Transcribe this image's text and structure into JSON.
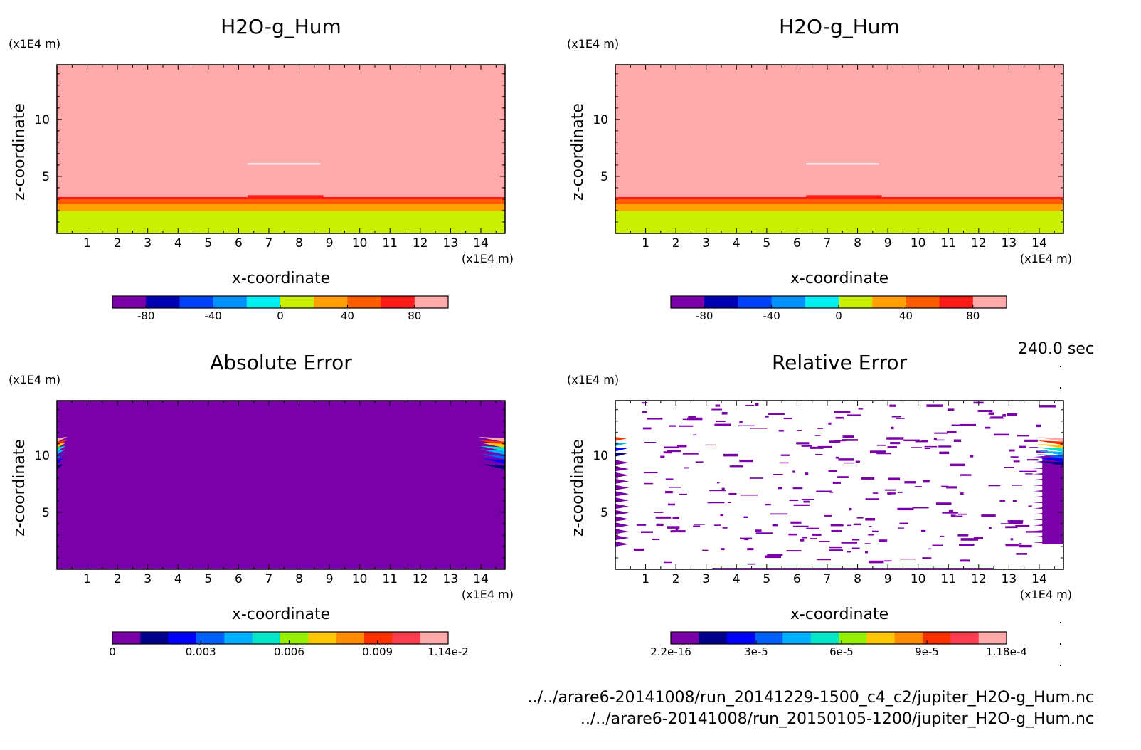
{
  "time_label": "240.0 sec",
  "footer": {
    "file1": "../../arare6-20141008/run_20141229-1500_c4_c2/jupiter_H2O-g_Hum.nc",
    "file2": "../../arare6-20141008/run_20150105-1200/jupiter_H2O-g_Hum.nc"
  },
  "colors": {
    "h2o_levels": [
      "#7a00a8",
      "#0000b4",
      "#0040ff",
      "#0090ff",
      "#00f0f0",
      "#c8f000",
      "#ffa000",
      "#ff5a00",
      "#ff1a1a",
      "#ffaaaa"
    ],
    "err_levels": [
      "#7a00a8",
      "#00008c",
      "#0000ff",
      "#0060ff",
      "#00b0ff",
      "#00e6c8",
      "#96f000",
      "#ffc800",
      "#ff8c00",
      "#ff3000",
      "#ff3c50",
      "#ffaaaa"
    ]
  },
  "chart_data": [
    {
      "type": "heatmap",
      "title": "H2O-g_Hum",
      "xlabel": "x-coordinate",
      "ylabel": "z-coordinate",
      "x_unit": "(x1E4 m)",
      "y_unit": "(x1E4 m)",
      "xlim": [
        0,
        14.8
      ],
      "ylim": [
        0,
        14.8
      ],
      "xticks": [
        1,
        2,
        3,
        4,
        5,
        6,
        7,
        8,
        9,
        10,
        11,
        12,
        13,
        14
      ],
      "yticks": [
        5,
        10
      ],
      "fields": [
        {
          "z": [
            0,
            2.0
          ],
          "value": 10
        },
        {
          "z": [
            2.0,
            2.6
          ],
          "value": 30
        },
        {
          "z": [
            2.6,
            3.0
          ],
          "value": 50
        },
        {
          "z": [
            3.0,
            3.2
          ],
          "value": 70
        },
        {
          "z": [
            3.2,
            14.8
          ],
          "value": 90
        }
      ],
      "colorbar": {
        "ticks": [
          -80,
          -40,
          0,
          40,
          80
        ],
        "labels": [
          "-80",
          "-40",
          "0",
          "40",
          "80"
        ],
        "min": -100,
        "max": 100
      }
    },
    {
      "type": "heatmap",
      "title": "H2O-g_Hum",
      "xlabel": "x-coordinate",
      "ylabel": "z-coordinate",
      "x_unit": "(x1E4 m)",
      "y_unit": "(x1E4 m)",
      "xlim": [
        0,
        14.8
      ],
      "ylim": [
        0,
        14.8
      ],
      "xticks": [
        1,
        2,
        3,
        4,
        5,
        6,
        7,
        8,
        9,
        10,
        11,
        12,
        13,
        14
      ],
      "yticks": [
        5,
        10
      ],
      "fields": [
        {
          "z": [
            0,
            2.0
          ],
          "value": 10
        },
        {
          "z": [
            2.0,
            2.6
          ],
          "value": 30
        },
        {
          "z": [
            2.6,
            3.0
          ],
          "value": 50
        },
        {
          "z": [
            3.0,
            3.2
          ],
          "value": 70
        },
        {
          "z": [
            3.2,
            14.8
          ],
          "value": 90
        }
      ],
      "colorbar": {
        "ticks": [
          -80,
          -40,
          0,
          40,
          80
        ],
        "labels": [
          "-80",
          "-40",
          "0",
          "40",
          "80"
        ],
        "min": -100,
        "max": 100
      }
    },
    {
      "type": "heatmap",
      "title": "Absolute Error",
      "xlabel": "x-coordinate",
      "ylabel": "z-coordinate",
      "x_unit": "(x1E4 m)",
      "y_unit": "(x1E4 m)",
      "xlim": [
        0,
        14.8
      ],
      "ylim": [
        0,
        14.8
      ],
      "xticks": [
        1,
        2,
        3,
        4,
        5,
        6,
        7,
        8,
        9,
        10,
        11,
        12,
        13,
        14
      ],
      "yticks": [
        5,
        10
      ],
      "background_value": 0,
      "colorbar": {
        "ticks": [
          0,
          0.003,
          0.006,
          0.009,
          0.0114
        ],
        "labels": [
          "0",
          "0.003",
          "0.006",
          "0.009",
          "1.14e-2"
        ],
        "min": 0,
        "max": 0.0114
      }
    },
    {
      "type": "heatmap",
      "title": "Relative Error",
      "xlabel": "x-coordinate",
      "ylabel": "z-coordinate",
      "x_unit": "(x1E4 m)",
      "y_unit": "(x1E4 m)",
      "xlim": [
        0,
        14.8
      ],
      "ylim": [
        0,
        14.8
      ],
      "xticks": [
        1,
        2,
        3,
        4,
        5,
        6,
        7,
        8,
        9,
        10,
        11,
        12,
        13,
        14
      ],
      "yticks": [
        5,
        10
      ],
      "colorbar": {
        "ticks": [
          2.2e-16,
          3e-05,
          6e-05,
          9e-05,
          0.000118
        ],
        "labels": [
          "2.2e-16",
          "3e-5",
          "6e-5",
          "9e-5",
          "1.18e-4"
        ],
        "min": 2.2e-16,
        "max": 0.000118
      }
    }
  ]
}
